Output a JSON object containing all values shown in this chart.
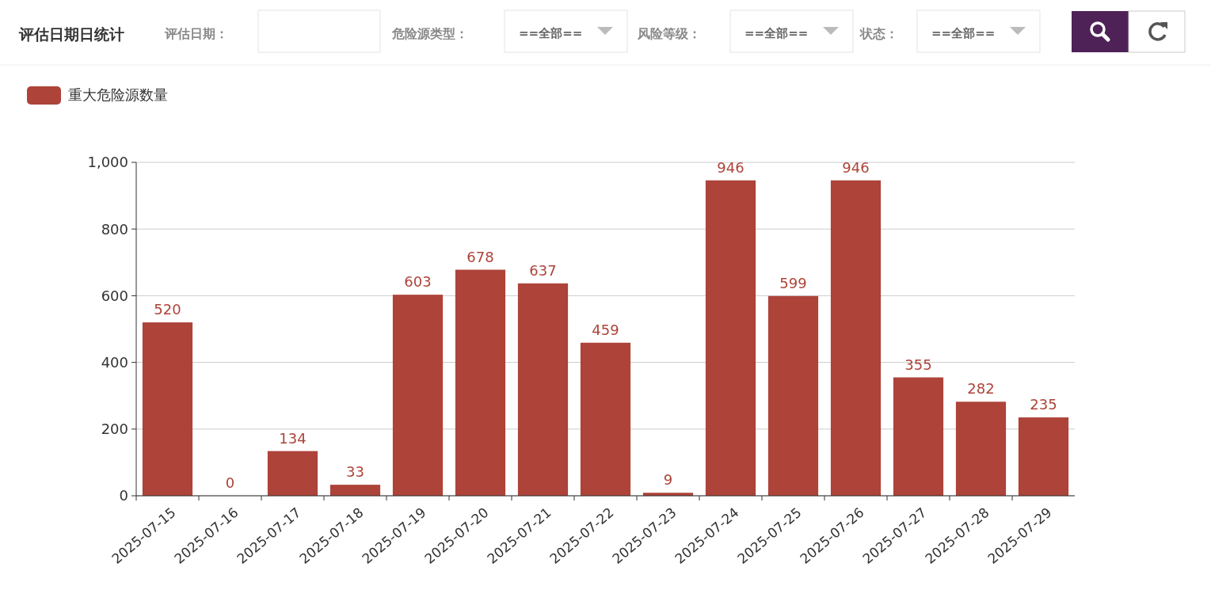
{
  "chart_data": {
    "type": "bar",
    "title": "评估日期日统计",
    "annotations": [
      "评估日期：",
      "危险源类型：",
      "==全部==",
      "风险等级：",
      "==全部==",
      "状态：",
      "==全部=="
    ],
    "categories": [
      "2025-07-15",
      "2025-07-16",
      "2025-07-17",
      "2025-07-18",
      "2025-07-19",
      "2025-07-20",
      "2025-07-21",
      "2025-07-22",
      "2025-07-23",
      "2025-07-24",
      "2025-07-25",
      "2025-07-26",
      "2025-07-27",
      "2025-07-28",
      "2025-07-29"
    ],
    "series": [
      {
        "name": "重大危险源数量",
        "color": "#ad4339",
        "values": [
          520,
          0,
          134,
          33,
          603,
          678,
          637,
          459,
          9,
          946,
          599,
          946,
          355,
          282,
          235
        ]
      }
    ],
    "ylim": [
      0,
      1000
    ],
    "yticks": [
      0,
      200,
      400,
      600,
      800,
      {
        "value": 1000,
        "label": "1,000"
      }
    ],
    "grid": "y",
    "legend": "top left",
    "data_labels": true
  }
}
